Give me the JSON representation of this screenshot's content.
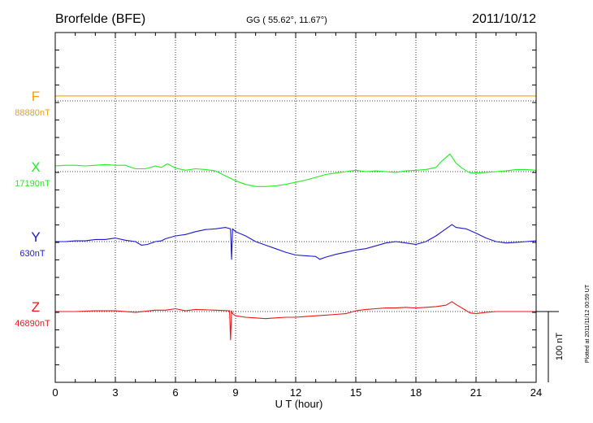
{
  "header": {
    "station": "Brorfelde (BFE)",
    "coords": "GG ( 55.62°,  11.67°)",
    "date": "2011/10/12"
  },
  "side_note": "Plotted at 2011/11/12 00:59 UT",
  "scale_bar_label": "100 nT",
  "chart_data": {
    "type": "line",
    "xlabel": "U T (hour)",
    "xlim": [
      0,
      24
    ],
    "xticks": [
      0,
      3,
      6,
      9,
      12,
      15,
      18,
      21,
      24
    ],
    "xtick_labels": [
      "0",
      "3",
      "6",
      "9",
      "12",
      "15",
      "18",
      "21",
      "24"
    ],
    "grid": true,
    "series": [
      {
        "name": "F",
        "baseline_label": "88880nT",
        "color": "#f0a000",
        "x": [
          0,
          24
        ],
        "y": [
          7,
          7
        ]
      },
      {
        "name": "X",
        "baseline_label": "17190nT",
        "color": "#22ee22",
        "x": [
          0,
          0.5,
          1,
          1.5,
          2,
          2.5,
          3,
          3.5,
          4,
          4.5,
          5,
          5.3,
          5.6,
          6,
          6.5,
          7,
          7.5,
          8,
          8.5,
          9,
          9.5,
          10,
          10.5,
          11,
          11.5,
          12,
          12.5,
          13,
          13.5,
          14,
          14.5,
          15,
          15.5,
          16,
          16.5,
          17,
          17.5,
          18,
          18.5,
          19,
          19.3,
          19.7,
          20,
          20.3,
          20.7,
          21,
          21.5,
          22,
          22.5,
          23,
          23.5,
          24
        ],
        "y": [
          8,
          9,
          9,
          8,
          9,
          10,
          9,
          9,
          4,
          4,
          8,
          6,
          11,
          5,
          2,
          4,
          3,
          1,
          -6,
          -13,
          -18,
          -21,
          -21,
          -20,
          -18,
          -15,
          -12,
          -8,
          -4,
          -2,
          0,
          2,
          0,
          1,
          0,
          -1,
          1,
          2,
          3,
          6,
          15,
          25,
          12,
          5,
          -2,
          -2,
          -1,
          0,
          1,
          3,
          3,
          2
        ]
      },
      {
        "name": "Y",
        "baseline_label": "630nT",
        "color": "#1a1acc",
        "x": [
          0,
          0.5,
          1,
          1.5,
          2,
          2.5,
          3,
          3.5,
          4,
          4.3,
          4.6,
          5,
          5.3,
          5.5,
          6,
          6.5,
          7,
          7.5,
          8,
          8.5,
          8.75,
          8.8,
          8.85,
          9,
          9.5,
          10,
          10.5,
          11,
          11.5,
          12,
          12.5,
          13,
          13.2,
          13.5,
          14,
          14.5,
          15,
          15.5,
          16,
          16.5,
          17,
          17.5,
          18,
          18.5,
          19,
          19.5,
          19.8,
          20,
          20.5,
          21,
          21.5,
          22,
          22.5,
          23,
          23.5,
          24
        ],
        "y": [
          0,
          0,
          1,
          1,
          3,
          3,
          5,
          2,
          0,
          -5,
          -4,
          0,
          1,
          4,
          8,
          10,
          14,
          17,
          18,
          20,
          18,
          -25,
          18,
          14,
          8,
          0,
          -5,
          -10,
          -15,
          -19,
          -20,
          -21,
          -25,
          -22,
          -18,
          -15,
          -12,
          -10,
          -6,
          -2,
          0,
          -2,
          -4,
          0,
          8,
          18,
          24,
          20,
          18,
          12,
          5,
          0,
          -2,
          -1,
          0,
          1
        ]
      },
      {
        "name": "Z",
        "baseline_label": "46890nT",
        "color": "#e81818",
        "x": [
          0,
          1,
          2,
          3,
          4,
          5,
          5.5,
          6,
          6.5,
          7,
          8,
          8.7,
          8.75,
          8.8,
          8.85,
          9,
          9.5,
          10,
          10.5,
          11,
          11.5,
          12,
          12.5,
          13,
          13.5,
          14,
          14.5,
          15,
          15.5,
          16,
          16.5,
          17,
          17.5,
          18,
          18.5,
          19,
          19.5,
          19.8,
          20,
          20.3,
          20.7,
          21,
          21.5,
          22,
          23,
          24
        ],
        "y": [
          0,
          0,
          1,
          1,
          -1,
          2,
          2,
          4,
          1,
          3,
          2,
          1,
          -40,
          1,
          -3,
          -6,
          -8,
          -9,
          -10,
          -9,
          -8,
          -8,
          -7,
          -6,
          -5,
          -4,
          -3,
          1,
          3,
          4,
          5,
          5,
          6,
          5,
          6,
          7,
          9,
          14,
          10,
          5,
          -2,
          -3,
          -1,
          0,
          0,
          0
        ]
      }
    ]
  }
}
